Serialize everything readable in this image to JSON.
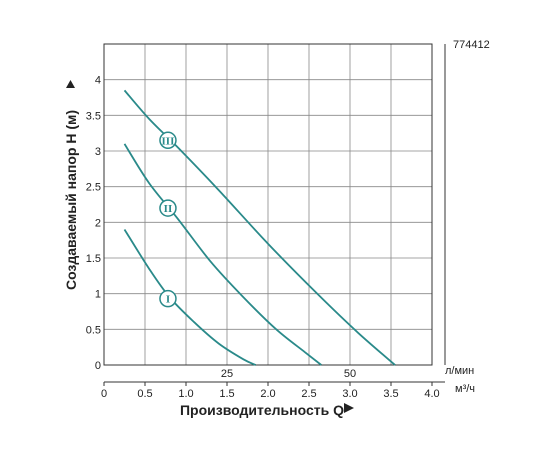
{
  "chart_data": {
    "type": "line",
    "code": "774412",
    "ylabel": "Создаваемый напор H (м)",
    "xlabel": "Производительность Q",
    "y_ticks": [
      0,
      0.5,
      1,
      1.5,
      2,
      2.5,
      3,
      3.5,
      4
    ],
    "ylim": [
      0,
      4.5
    ],
    "flow_lmin": {
      "unit": "л/мин",
      "ticks": [
        25,
        50
      ]
    },
    "flow_m3h": {
      "unit": "м³/ч",
      "ticks": [
        "0",
        "0.5",
        "1.0",
        "1.5",
        "2.0",
        "2.5",
        "3.0",
        "3.5",
        "4.0"
      ],
      "xlim": [
        0,
        4.0
      ]
    },
    "grid": true,
    "line_color": "#2a8a8a",
    "series": [
      {
        "name": "I",
        "label_at": [
          0.78,
          0.93
        ],
        "points": [
          [
            0.25,
            1.9
          ],
          [
            0.55,
            1.35
          ],
          [
            0.8,
            0.95
          ],
          [
            1.1,
            0.6
          ],
          [
            1.4,
            0.3
          ],
          [
            1.7,
            0.08
          ],
          [
            1.85,
            0.0
          ]
        ]
      },
      {
        "name": "II",
        "label_at": [
          0.78,
          2.2
        ],
        "points": [
          [
            0.25,
            3.1
          ],
          [
            0.55,
            2.55
          ],
          [
            0.9,
            2.05
          ],
          [
            1.3,
            1.45
          ],
          [
            1.7,
            0.95
          ],
          [
            2.1,
            0.5
          ],
          [
            2.45,
            0.18
          ],
          [
            2.65,
            0.0
          ]
        ]
      },
      {
        "name": "III",
        "label_at": [
          0.78,
          3.15
        ],
        "points": [
          [
            0.25,
            3.85
          ],
          [
            0.55,
            3.45
          ],
          [
            0.9,
            3.05
          ],
          [
            1.4,
            2.45
          ],
          [
            2.0,
            1.7
          ],
          [
            2.6,
            1.0
          ],
          [
            3.1,
            0.45
          ],
          [
            3.55,
            0.0
          ]
        ]
      }
    ]
  }
}
